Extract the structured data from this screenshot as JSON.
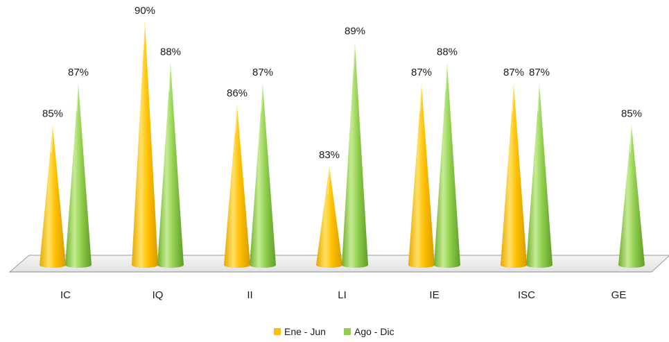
{
  "chart_data": {
    "type": "bar",
    "style": "3d-cone",
    "categories": [
      "IC",
      "IQ",
      "II",
      "LI",
      "IE",
      "ISC",
      "GE"
    ],
    "series": [
      {
        "name": "Ene - Jun",
        "color": "#FFC000",
        "values": [
          85,
          90,
          86,
          83,
          87,
          87,
          null
        ]
      },
      {
        "name": "Ago - Dic",
        "color": "#92D050",
        "values": [
          87,
          88,
          87,
          89,
          88,
          87,
          85
        ]
      }
    ],
    "data_labels": {
      "Ene - Jun": [
        "85%",
        "90%",
        "86%",
        "83%",
        "87%",
        "87%",
        ""
      ],
      "Ago - Dic": [
        "87%",
        "88%",
        "87%",
        "89%",
        "88%",
        "87%",
        "85%"
      ]
    },
    "value_format": "percent",
    "ylim": [
      75,
      90
    ],
    "grid": false,
    "legend_position": "bottom"
  }
}
